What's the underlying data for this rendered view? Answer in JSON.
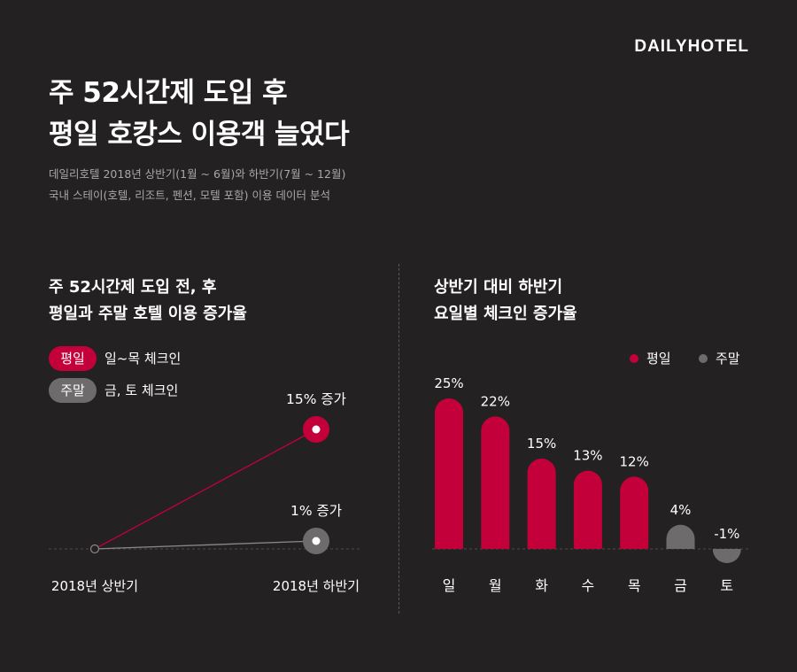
{
  "brand": "DAILYHOTEL",
  "title_line1": "주 52시간제 도입 후",
  "title_line2": "평일 호캉스 이용객 늘었다",
  "subtitle_line1": "데일리호텔 2018년 상반기(1월 ~ 6월)와 하반기(7월 ~ 12월)",
  "subtitle_line2": "국내 스테이(호텔, 리조트, 펜션, 모텔 포함) 이용 데이터 분석",
  "colors": {
    "weekday": "#c4003b",
    "weekend": "#6d6b6c",
    "background": "#232122"
  },
  "left_legend": [
    {
      "badge": "평일",
      "text": "일~목 체크인"
    },
    {
      "badge": "주말",
      "text": "금, 토 체크인"
    }
  ],
  "right_legend": [
    {
      "label": "평일"
    },
    {
      "label": "주말"
    }
  ],
  "chart_data": [
    {
      "type": "line",
      "title_line1": "주 52시간제 도입 전, 후",
      "title_line2": "평일과 주말 호텔 이용 증가율",
      "x": [
        "2018년 상반기",
        "2018년 하반기"
      ],
      "series": [
        {
          "name": "평일",
          "values": [
            0,
            15
          ],
          "end_label": "15% 증가",
          "color": "#c4003b"
        },
        {
          "name": "주말",
          "values": [
            0,
            1
          ],
          "end_label": "1% 증가",
          "color": "#6d6b6c"
        }
      ]
    },
    {
      "type": "bar",
      "title_line1": "상반기 대비 하반기",
      "title_line2": "요일별 체크인 증가율",
      "categories": [
        "일",
        "월",
        "화",
        "수",
        "목",
        "금",
        "토"
      ],
      "values": [
        25,
        22,
        15,
        13,
        12,
        4,
        -1
      ],
      "labels": [
        "25%",
        "22%",
        "15%",
        "13%",
        "12%",
        "4%",
        "-1%"
      ],
      "groups": [
        "평일",
        "평일",
        "평일",
        "평일",
        "평일",
        "주말",
        "주말"
      ]
    }
  ]
}
